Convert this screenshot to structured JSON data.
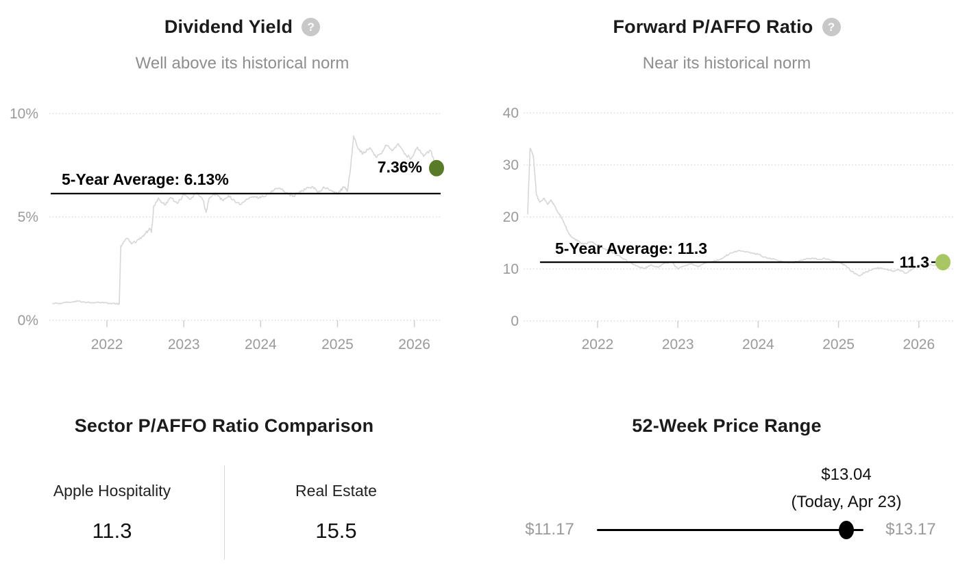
{
  "ui": {
    "help_glyph": "?"
  },
  "chart_data": [
    {
      "type": "line",
      "id": "dividend-yield",
      "title": "Dividend Yield",
      "subtitle": "Well above its historical norm",
      "xlabel": "",
      "ylabel": "",
      "grid": "horizontal-dotted",
      "legend": "none",
      "line_color": "#d6d6d6",
      "ylim": [
        0,
        10.5
      ],
      "xlim": [
        2021.25,
        2026.36
      ],
      "y_ticks": [
        {
          "v": 10,
          "label": "10%"
        },
        {
          "v": 5,
          "label": "5%"
        },
        {
          "v": 0,
          "label": "0%"
        }
      ],
      "x_ticks": [
        {
          "v": 2022,
          "label": "2022"
        },
        {
          "v": 2023,
          "label": "2023"
        },
        {
          "v": 2024,
          "label": "2024"
        },
        {
          "v": 2025,
          "label": "2025"
        },
        {
          "v": 2026,
          "label": "2026"
        }
      ],
      "average": {
        "value": 6.13,
        "label": "5-Year Average: 6.13%"
      },
      "current": {
        "value": 7.36,
        "label": "7.36%",
        "dot_color": "#597b28"
      },
      "series": [
        {
          "name": "Dividend Yield (%)",
          "points": [
            [
              2021.29,
              0.82
            ],
            [
              2021.37,
              0.8
            ],
            [
              2021.46,
              0.86
            ],
            [
              2021.54,
              0.88
            ],
            [
              2021.62,
              0.92
            ],
            [
              2021.71,
              0.88
            ],
            [
              2021.79,
              0.85
            ],
            [
              2021.87,
              0.88
            ],
            [
              2021.96,
              0.84
            ],
            [
              2022.04,
              0.82
            ],
            [
              2022.12,
              0.8
            ],
            [
              2022.16,
              0.79
            ],
            [
              2022.18,
              3.6
            ],
            [
              2022.25,
              3.95
            ],
            [
              2022.33,
              3.72
            ],
            [
              2022.42,
              3.92
            ],
            [
              2022.5,
              4.18
            ],
            [
              2022.56,
              4.42
            ],
            [
              2022.58,
              4.3
            ],
            [
              2022.61,
              5.55
            ],
            [
              2022.67,
              5.92
            ],
            [
              2022.75,
              5.58
            ],
            [
              2022.83,
              5.95
            ],
            [
              2022.92,
              5.65
            ],
            [
              2023.0,
              6.08
            ],
            [
              2023.08,
              5.85
            ],
            [
              2023.17,
              6.18
            ],
            [
              2023.25,
              5.8
            ],
            [
              2023.29,
              5.22
            ],
            [
              2023.33,
              5.9
            ],
            [
              2023.42,
              6.12
            ],
            [
              2023.5,
              5.82
            ],
            [
              2023.58,
              6.05
            ],
            [
              2023.67,
              5.72
            ],
            [
              2023.75,
              5.62
            ],
            [
              2023.83,
              5.86
            ],
            [
              2023.92,
              6.0
            ],
            [
              2024.0,
              5.92
            ],
            [
              2024.08,
              6.1
            ],
            [
              2024.17,
              6.28
            ],
            [
              2024.25,
              6.4
            ],
            [
              2024.33,
              6.15
            ],
            [
              2024.42,
              5.98
            ],
            [
              2024.5,
              6.18
            ],
            [
              2024.58,
              6.32
            ],
            [
              2024.67,
              6.48
            ],
            [
              2024.75,
              6.2
            ],
            [
              2024.83,
              6.42
            ],
            [
              2024.92,
              6.28
            ],
            [
              2025.0,
              6.1
            ],
            [
              2025.08,
              6.45
            ],
            [
              2025.13,
              6.25
            ],
            [
              2025.17,
              7.4
            ],
            [
              2025.21,
              8.92
            ],
            [
              2025.27,
              8.3
            ],
            [
              2025.33,
              8.05
            ],
            [
              2025.42,
              8.35
            ],
            [
              2025.5,
              7.9
            ],
            [
              2025.58,
              8.12
            ],
            [
              2025.63,
              8.48
            ],
            [
              2025.71,
              8.2
            ],
            [
              2025.79,
              8.55
            ],
            [
              2025.87,
              8.05
            ],
            [
              2025.96,
              7.82
            ],
            [
              2026.04,
              8.38
            ],
            [
              2026.12,
              7.92
            ],
            [
              2026.21,
              8.22
            ],
            [
              2026.29,
              7.36
            ]
          ]
        }
      ]
    },
    {
      "type": "line",
      "id": "forward-paffo",
      "title": "Forward P/AFFO Ratio",
      "subtitle": "Near its historical norm",
      "xlabel": "",
      "ylabel": "",
      "grid": "horizontal-dotted",
      "legend": "none",
      "line_color": "#d6d6d6",
      "ylim": [
        0,
        42
      ],
      "xlim": [
        2021.13,
        2026.36
      ],
      "y_ticks": [
        {
          "v": 40,
          "label": "40"
        },
        {
          "v": 30,
          "label": "30"
        },
        {
          "v": 20,
          "label": "20"
        },
        {
          "v": 10,
          "label": "10"
        },
        {
          "v": 0,
          "label": "0"
        }
      ],
      "x_ticks": [
        {
          "v": 2022,
          "label": "2022"
        },
        {
          "v": 2023,
          "label": "2023"
        },
        {
          "v": 2024,
          "label": "2024"
        },
        {
          "v": 2025,
          "label": "2025"
        },
        {
          "v": 2026,
          "label": "2026"
        }
      ],
      "average": {
        "value": 11.3,
        "label": "5-Year Average: 11.3"
      },
      "current": {
        "value": 11.3,
        "label": "11.3",
        "dot_color": "#a9c664"
      },
      "series": [
        {
          "name": "Forward P/AFFO Ratio",
          "points": [
            [
              2021.13,
              20.5
            ],
            [
              2021.16,
              33.2
            ],
            [
              2021.2,
              31.8
            ],
            [
              2021.24,
              24.2
            ],
            [
              2021.28,
              22.8
            ],
            [
              2021.33,
              23.6
            ],
            [
              2021.38,
              22.4
            ],
            [
              2021.42,
              23.3
            ],
            [
              2021.46,
              22.2
            ],
            [
              2021.5,
              21.0
            ],
            [
              2021.54,
              20.2
            ],
            [
              2021.58,
              19.0
            ],
            [
              2021.63,
              17.2
            ],
            [
              2021.67,
              16.2
            ],
            [
              2021.75,
              15.4
            ],
            [
              2021.83,
              14.8
            ],
            [
              2021.92,
              15.2
            ],
            [
              2022.0,
              14.6
            ],
            [
              2022.08,
              13.9
            ],
            [
              2022.17,
              13.3
            ],
            [
              2022.25,
              12.6
            ],
            [
              2022.33,
              11.9
            ],
            [
              2022.42,
              11.1
            ],
            [
              2022.5,
              10.5
            ],
            [
              2022.58,
              10.1
            ],
            [
              2022.67,
              10.8
            ],
            [
              2022.75,
              10.3
            ],
            [
              2022.83,
              11.1
            ],
            [
              2022.92,
              11.4
            ],
            [
              2023.0,
              10.0
            ],
            [
              2023.08,
              10.6
            ],
            [
              2023.17,
              11.0
            ],
            [
              2023.25,
              10.4
            ],
            [
              2023.33,
              11.1
            ],
            [
              2023.42,
              11.4
            ],
            [
              2023.5,
              11.7
            ],
            [
              2023.58,
              12.4
            ],
            [
              2023.67,
              13.1
            ],
            [
              2023.75,
              13.5
            ],
            [
              2023.83,
              13.3
            ],
            [
              2023.92,
              13.1
            ],
            [
              2024.0,
              12.8
            ],
            [
              2024.08,
              12.3
            ],
            [
              2024.17,
              11.9
            ],
            [
              2024.25,
              11.6
            ],
            [
              2024.33,
              11.3
            ],
            [
              2024.42,
              11.2
            ],
            [
              2024.5,
              11.5
            ],
            [
              2024.58,
              11.8
            ],
            [
              2024.67,
              12.1
            ],
            [
              2024.75,
              11.8
            ],
            [
              2024.83,
              12.0
            ],
            [
              2024.92,
              11.6
            ],
            [
              2025.0,
              11.3
            ],
            [
              2025.08,
              10.7
            ],
            [
              2025.17,
              9.5
            ],
            [
              2025.25,
              8.7
            ],
            [
              2025.33,
              9.3
            ],
            [
              2025.42,
              9.9
            ],
            [
              2025.5,
              10.2
            ],
            [
              2025.58,
              10.0
            ],
            [
              2025.67,
              9.6
            ],
            [
              2025.75,
              9.9
            ],
            [
              2025.83,
              9.2
            ],
            [
              2025.92,
              10.0
            ],
            [
              2026.0,
              10.7
            ],
            [
              2026.08,
              11.0
            ],
            [
              2026.17,
              10.7
            ],
            [
              2026.25,
              11.0
            ],
            [
              2026.3,
              11.3
            ]
          ]
        }
      ]
    }
  ],
  "sector_comparison": {
    "title": "Sector P/AFFO Ratio Comparison",
    "left": {
      "label": "Apple Hospitality",
      "value": "11.3"
    },
    "right": {
      "label": "Real Estate",
      "value": "15.5"
    }
  },
  "price_range": {
    "title": "52-Week Price Range",
    "low": 11.17,
    "high": 13.17,
    "current": 13.04,
    "low_label": "$11.17",
    "high_label": "$13.17",
    "current_label": "$13.04",
    "current_sublabel": "(Today, Apr 23)"
  }
}
